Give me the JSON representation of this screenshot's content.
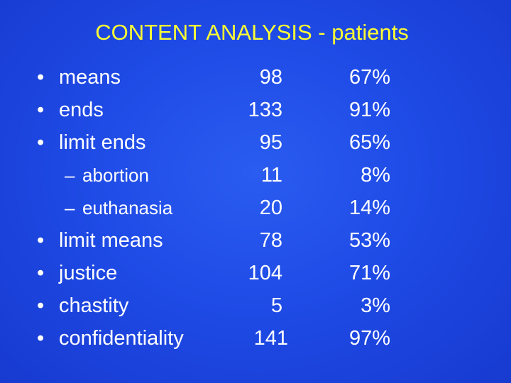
{
  "slide": {
    "title": "CONTENT ANALYSIS - patients",
    "bullet_glyph": "•",
    "dash_glyph": "–",
    "colors": {
      "background": "#1f4be6",
      "title": "#ffff33",
      "text": "#ffffff"
    },
    "rows": [
      {
        "level": 1,
        "label": "means",
        "count": "98",
        "percent": "67%"
      },
      {
        "level": 1,
        "label": "ends",
        "count": "133",
        "percent": "91%"
      },
      {
        "level": 1,
        "label": "limit ends",
        "count": "95",
        "percent": "65%"
      },
      {
        "level": 2,
        "label": "abortion",
        "count": "11",
        "percent": "8%"
      },
      {
        "level": 2,
        "label": "euthanasia",
        "count": "20",
        "percent": "14%"
      },
      {
        "level": 1,
        "label": "limit means",
        "count": "78",
        "percent": "53%"
      },
      {
        "level": 1,
        "label": "justice",
        "count": "104",
        "percent": "71%"
      },
      {
        "level": 1,
        "label": "chastity",
        "count": "5",
        "percent": "3%"
      },
      {
        "level": 1,
        "label": "confidentiality",
        "count": "141",
        "percent": "97%"
      }
    ]
  }
}
